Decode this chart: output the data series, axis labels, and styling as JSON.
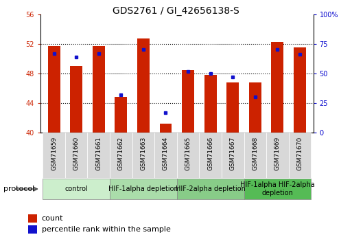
{
  "title": "GDS2761 / GI_42656138-S",
  "samples": [
    "GSM71659",
    "GSM71660",
    "GSM71661",
    "GSM71662",
    "GSM71663",
    "GSM71664",
    "GSM71665",
    "GSM71666",
    "GSM71667",
    "GSM71668",
    "GSM71669",
    "GSM71670"
  ],
  "count_values": [
    51.7,
    49.0,
    51.7,
    44.8,
    52.7,
    41.2,
    48.5,
    47.8,
    46.8,
    46.8,
    52.3,
    51.5
  ],
  "percentile_values": [
    67,
    64,
    67,
    32,
    70,
    17,
    52,
    50,
    47,
    30,
    70,
    66
  ],
  "ylim": [
    40,
    56
  ],
  "yticks": [
    40,
    44,
    48,
    52,
    56
  ],
  "y2lim": [
    0,
    100
  ],
  "y2ticks": [
    0,
    25,
    50,
    75,
    100
  ],
  "bar_color": "#cc2200",
  "dot_color": "#1111cc",
  "grid_color": "#000000",
  "protocol_groups": [
    {
      "label": "control",
      "start": 0,
      "end": 2,
      "color": "#cceecc"
    },
    {
      "label": "HIF-1alpha depletion",
      "start": 3,
      "end": 5,
      "color": "#aaddaa"
    },
    {
      "label": "HIF-2alpha depletion",
      "start": 6,
      "end": 8,
      "color": "#88cc88"
    },
    {
      "label": "HIF-1alpha HIF-2alpha\ndepletion",
      "start": 9,
      "end": 11,
      "color": "#55bb55"
    }
  ],
  "bar_width": 0.55,
  "xlabel_fontsize": 6.5,
  "ylabel_left_color": "#cc2200",
  "ylabel_right_color": "#0000cc",
  "title_fontsize": 10,
  "legend_fontsize": 8,
  "protocol_label": "protocol",
  "protocol_fontsize": 8,
  "tick_label_fontsize": 7,
  "group_label_fontsize": 7,
  "sample_box_color": "#d8d8d8"
}
